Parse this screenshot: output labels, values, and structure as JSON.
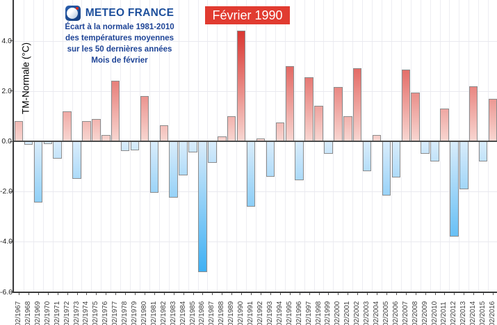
{
  "header": {
    "logo_text": "METEO FRANCE",
    "title_lines": [
      "Écart à la normale 1981-2010",
      "des températures moyennes",
      "sur les 50 dernières années",
      "Mois de février"
    ]
  },
  "annotation": {
    "label": "Février 1990"
  },
  "chart_data": {
    "type": "bar",
    "title": "Écart à la normale 1981-2010 des températures moyennes sur les 50 dernières années - Mois de février",
    "ylabel": "TM-Normale (°C)",
    "xlabel": "",
    "ylim": [
      -6.0,
      5.6
    ],
    "grid": true,
    "categories": [
      "02/1967",
      "02/1968",
      "02/1969",
      "02/1970",
      "02/1971",
      "02/1972",
      "02/1973",
      "02/1974",
      "02/1975",
      "02/1976",
      "02/1977",
      "02/1978",
      "02/1979",
      "02/1980",
      "02/1981",
      "02/1982",
      "02/1983",
      "02/1984",
      "02/1985",
      "02/1986",
      "02/1987",
      "02/1988",
      "02/1989",
      "02/1990",
      "02/1991",
      "02/1992",
      "02/1993",
      "02/1994",
      "02/1995",
      "02/1996",
      "02/1997",
      "02/1998",
      "02/1999",
      "02/2000",
      "02/2001",
      "02/2002",
      "02/2003",
      "02/2004",
      "02/2005",
      "02/2006",
      "02/2007",
      "02/2008",
      "02/2009",
      "02/2010",
      "02/2011",
      "02/2012",
      "02/2013",
      "02/2014",
      "02/2015",
      "02/2016"
    ],
    "values": [
      0.8,
      -0.15,
      -2.45,
      -0.1,
      -0.7,
      1.2,
      -1.5,
      0.8,
      0.9,
      0.25,
      2.4,
      -0.4,
      -0.35,
      1.8,
      -2.05,
      0.65,
      -2.25,
      -1.35,
      -0.45,
      -5.2,
      -0.85,
      0.2,
      1.0,
      4.4,
      -2.6,
      0.1,
      -1.4,
      0.75,
      3.0,
      -1.55,
      2.55,
      1.4,
      -0.5,
      2.15,
      1.0,
      2.9,
      -1.2,
      0.25,
      -2.15,
      -1.45,
      2.85,
      1.95,
      -0.5,
      -0.8,
      1.3,
      -3.8,
      -1.9,
      2.2,
      -0.8,
      1.7
    ],
    "yticks": [
      {
        "label": "4.0",
        "value": 4
      },
      {
        "label": "2.0",
        "value": 2
      },
      {
        "label": "0.0",
        "value": 0
      },
      {
        "label": "-2.0",
        "value": -2
      },
      {
        "label": "-4.0",
        "value": -4
      },
      {
        "label": "-6.0",
        "value": -6
      }
    ],
    "highlighted_category": "02/1990",
    "colors": {
      "positive_deep": "#d93530",
      "positive_pale": "#f8d6d1",
      "negative_deep": "#3fb0f3",
      "negative_pale": "#d9ecfb",
      "bar_border": "#8c8c8c",
      "annotation_bg": "#e13b30",
      "annotation_text": "#ffffff",
      "title_text": "#1d4396"
    }
  }
}
